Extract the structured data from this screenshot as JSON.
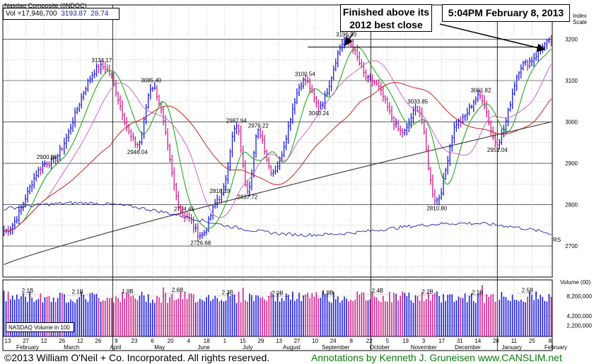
{
  "header": {
    "title": "Nasdaq Composite  (0NDQC)",
    "volume": "Vol =17,946,700",
    "last": "3193.87",
    "change": "28.74"
  },
  "annotations": {
    "note_best_close": "Finished above its 2012 best close",
    "note_best_close_l1": "Finished above its",
    "note_best_close_l2": "2012 best close",
    "note_time": "5:04PM February 8, 2013"
  },
  "axis": {
    "index_scale_l1": "Index",
    "index_scale_l2": "Scale",
    "volume_label": "Volume (00)",
    "nasdaq_volume_label": "NASDAQ Volume in 100",
    "rs_label": "RS"
  },
  "footer": {
    "copyright": "©2013 William O'Neil + Co. Incorporated. All rights reserved.",
    "credit": "Annotations by Kenneth J. Gruneisen www.CANSLIM.net"
  },
  "colors": {
    "up_bar": "#1a1ae0",
    "down_bar": "#d0208a",
    "ma10": "#22aa22",
    "ma21": "#cc66cc",
    "ma50": "#cc2222",
    "ma200": "#333333",
    "rs_line": "#2222aa",
    "grid": "#000000",
    "note_text": "#000000",
    "credit": "#0a7a0a"
  },
  "chart_data": {
    "type": "line",
    "title": "Nasdaq Composite  (0NDQC)",
    "ylim": [
      2625,
      3235
    ],
    "volume_ylim": [
      0,
      11500000
    ],
    "y_ticks": [
      2700,
      2800,
      2900,
      3000,
      3100,
      3200
    ],
    "volume_ticks": [
      {
        "value": 8200000,
        "label": "8,200,000"
      },
      {
        "value": 4200000,
        "label": "4,200,000"
      },
      {
        "value": 2200000,
        "label": "2,200,000"
      }
    ],
    "x_day_ticks": [
      "13",
      "27",
      "12",
      "26",
      "12",
      "26",
      "9",
      "23",
      "6",
      "20",
      "4",
      "18",
      "1",
      "15",
      "29",
      "13",
      "27",
      "10",
      "24",
      "8",
      "22",
      "5",
      "19",
      "3",
      "17",
      "31",
      "14",
      "28",
      "11",
      "25",
      "8"
    ],
    "months": [
      "February",
      "March",
      "April",
      "May",
      "June",
      "July",
      "August",
      "September",
      "October",
      "November",
      "December",
      "January",
      "February"
    ],
    "price_keypoints": [
      {
        "t": 0,
        "v": 2736
      },
      {
        "t": 0.08,
        "v": 2900.28
      },
      {
        "t": 0.18,
        "v": 3134.17
      },
      {
        "t": 0.245,
        "v": 2946.04
      },
      {
        "t": 0.27,
        "v": 3085.4
      },
      {
        "t": 0.33,
        "v": 2774.45
      },
      {
        "t": 0.36,
        "v": 2726.68
      },
      {
        "t": 0.395,
        "v": 2818.19
      },
      {
        "t": 0.425,
        "v": 2987.94
      },
      {
        "t": 0.445,
        "v": 2837.72
      },
      {
        "t": 0.465,
        "v": 2976.22
      },
      {
        "t": 0.49,
        "v": 2880
      },
      {
        "t": 0.55,
        "v": 3100.54
      },
      {
        "t": 0.575,
        "v": 3040.24
      },
      {
        "t": 0.625,
        "v": 3196.93
      },
      {
        "t": 0.67,
        "v": 3100
      },
      {
        "t": 0.73,
        "v": 2975
      },
      {
        "t": 0.755,
        "v": 3033.85
      },
      {
        "t": 0.79,
        "v": 2810.8
      },
      {
        "t": 0.83,
        "v": 3000
      },
      {
        "t": 0.87,
        "v": 3061.82
      },
      {
        "t": 0.9,
        "v": 2951.04
      },
      {
        "t": 0.95,
        "v": 3140
      },
      {
        "t": 1.0,
        "v": 3193.87
      }
    ],
    "labeled_points": [
      {
        "label": "3134.17",
        "value": 3134.17
      },
      {
        "label": "3085.40",
        "value": 3085.4
      },
      {
        "label": "2946.04",
        "value": 2946.04
      },
      {
        "label": "2900.28",
        "value": 2900.28
      },
      {
        "label": "2774.45",
        "value": 2774.45
      },
      {
        "label": "2726.68",
        "value": 2726.68
      },
      {
        "label": "2818.19",
        "value": 2818.19
      },
      {
        "label": "2987.94",
        "value": 2987.94
      },
      {
        "label": "2976.22",
        "value": 2976.22
      },
      {
        "label": "2837.72",
        "value": 2837.72
      },
      {
        "label": "3100.54",
        "value": 3100.54
      },
      {
        "label": "3040.24",
        "value": 3040.24
      },
      {
        "label": "3196.93",
        "value": 3196.93
      },
      {
        "label": "3033.85",
        "value": 3033.85
      },
      {
        "label": "2810.80",
        "value": 2810.8
      },
      {
        "label": "3061.82",
        "value": 3061.82
      },
      {
        "label": "2951.04",
        "value": 2951.04
      }
    ],
    "volume_labels": [
      "2.1B",
      "2.1B",
      "1.9B",
      "2.6B",
      "2.3B",
      "2.0B",
      "1.9B",
      "2.4B",
      "2.2B",
      "2.1B",
      "2.5B"
    ],
    "volume_levels": [
      8600000,
      8400000,
      8500000,
      8800000,
      8300000,
      8100000,
      8200000,
      8600000,
      8400000,
      8300000,
      8700000
    ],
    "best_close_line": 3181
  }
}
